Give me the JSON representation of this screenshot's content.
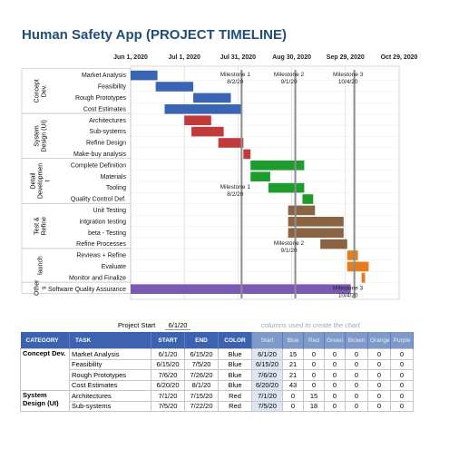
{
  "header": {
    "title": "Human Safety App (PROJECT TIMELINE)"
  },
  "chart_data": {
    "type": "gantt",
    "title": "Human Safety App (PROJECT TIMELINE)",
    "x_axis": {
      "type": "date",
      "range": [
        "2020-06-01",
        "2020-10-29"
      ],
      "ticks": [
        "Jun 1, 2020",
        "Jul 1, 2020",
        "Jul 31, 2020",
        "Aug 30, 2020",
        "Sep 29, 2020",
        "Oct 29, 2020"
      ],
      "tick_dates": [
        "2020-06-01",
        "2020-07-01",
        "2020-07-31",
        "2020-08-30",
        "2020-09-29",
        "2020-10-29"
      ]
    },
    "categories": [
      {
        "label": "Concept Dev.",
        "lines": [
          "Concept",
          "Dev."
        ],
        "rows": [
          0,
          3
        ]
      },
      {
        "label": "System Design (UI)",
        "lines": [
          "System",
          "Design (UI)"
        ],
        "rows": [
          4,
          7
        ]
      },
      {
        "label": "Detail Development",
        "lines": [
          "Detail",
          "Developmen",
          "t"
        ],
        "rows": [
          8,
          11
        ]
      },
      {
        "label": "Test & Refine",
        "lines": [
          "Test &",
          "Refine"
        ],
        "rows": [
          12,
          15
        ]
      },
      {
        "label": "launch",
        "lines": [
          "launch"
        ],
        "rows": [
          16,
          18
        ]
      },
      {
        "label": "Others",
        "lines": [
          "Other",
          "s"
        ],
        "rows": [
          19,
          19
        ]
      }
    ],
    "tasks": [
      {
        "name": "Market Analysis",
        "start": "2020-06-01",
        "days": 15,
        "color": "Blue"
      },
      {
        "name": "Feasibility",
        "start": "2020-06-15",
        "days": 21,
        "color": "Blue"
      },
      {
        "name": "Rough Prototypes",
        "start": "2020-07-06",
        "days": 21,
        "color": "Blue"
      },
      {
        "name": "Cost Estimates",
        "start": "2020-06-20",
        "days": 43,
        "color": "Blue"
      },
      {
        "name": "Architectures",
        "start": "2020-07-01",
        "days": 15,
        "color": "Red"
      },
      {
        "name": "Sub-systems",
        "start": "2020-07-05",
        "days": 18,
        "color": "Red"
      },
      {
        "name": "Refine Design",
        "start": "2020-07-20",
        "days": 14,
        "color": "Red"
      },
      {
        "name": "Make-buy analysis",
        "start": "2020-08-03",
        "days": 4,
        "color": "Red"
      },
      {
        "name": "Complete Definition",
        "start": "2020-08-07",
        "days": 30,
        "color": "Green"
      },
      {
        "name": "Materials",
        "start": "2020-08-07",
        "days": 11,
        "color": "Green"
      },
      {
        "name": "Tooling",
        "start": "2020-08-17",
        "days": 20,
        "color": "Green"
      },
      {
        "name": "Quality Control Def.",
        "start": "2020-09-05",
        "days": 6,
        "color": "Green"
      },
      {
        "name": "Unit Testing",
        "start": "2020-08-28",
        "days": 15,
        "color": "Brown"
      },
      {
        "name": "intgration testing",
        "start": "2020-08-28",
        "days": 31,
        "color": "Brown"
      },
      {
        "name": "beta - Testing",
        "start": "2020-08-28",
        "days": 31,
        "color": "Brown"
      },
      {
        "name": "Refine Processes",
        "start": "2020-09-15",
        "days": 15,
        "color": "Brown"
      },
      {
        "name": "Reviews + Refine",
        "start": "2020-09-30",
        "days": 6,
        "color": "Orange"
      },
      {
        "name": "Evaluate",
        "start": "2020-09-30",
        "days": 12,
        "color": "Orange"
      },
      {
        "name": "Monitor and Finalize",
        "start": "2020-10-08",
        "days": 2,
        "color": "Orange"
      },
      {
        "name": "Software Quality Assurance",
        "start": "2020-06-01",
        "days": 123,
        "color": "Purple"
      }
    ],
    "milestones": [
      {
        "label": "Milestone 1",
        "date_label": "8/2/20",
        "date": "2020-08-02",
        "row": 0
      },
      {
        "label": "Milestone 2",
        "date_label": "9/1/20",
        "date": "2020-09-01",
        "row": 0
      },
      {
        "label": "Milestone 3",
        "date_label": "10/4/20",
        "date": "2020-10-04",
        "row": 0
      },
      {
        "label": "Milestone 1",
        "date_label": "8/2/20",
        "date": "2020-08-02",
        "row": 10
      },
      {
        "label": "Milestone 2",
        "date_label": "9/1/20",
        "date": "2020-09-01",
        "row": 15
      },
      {
        "label": "Milestone 3",
        "date_label": "10/4/20",
        "date": "2020-10-04",
        "row": 19
      }
    ],
    "colors": {
      "Blue": "#3a65b4",
      "Red": "#c0393b",
      "Green": "#1f9d2c",
      "Brown": "#8a6343",
      "Orange": "#e57d1d",
      "Purple": "#7b5ab3"
    }
  },
  "project_start": {
    "label": "Project Start",
    "value": "6/1/20"
  },
  "note": "columns used to create the chart",
  "table": {
    "headers": [
      "CATEGORY",
      "TASK",
      "START",
      "END",
      "COLOR",
      "Start",
      "Blue",
      "Red",
      "Green",
      "Brown",
      "Orange",
      "Purple"
    ],
    "rows": [
      {
        "category": "Concept Dev.",
        "task": "Market Analysis",
        "start": "6/1/20",
        "end": "6/15/20",
        "color": "Blue",
        "start2": "6/1/20",
        "blue": "15",
        "red": "0",
        "green": "0",
        "brown": "0",
        "orange": "0",
        "purple": "0"
      },
      {
        "category": "",
        "task": "Feasibility",
        "start": "6/15/20",
        "end": "7/5/20",
        "color": "Blue",
        "start2": "6/15/20",
        "blue": "21",
        "red": "0",
        "green": "0",
        "brown": "0",
        "orange": "0",
        "purple": "0"
      },
      {
        "category": "",
        "task": "Rough Prototypes",
        "start": "7/6/20",
        "end": "7/26/20",
        "color": "Blue",
        "start2": "7/6/20",
        "blue": "21",
        "red": "0",
        "green": "0",
        "brown": "0",
        "orange": "0",
        "purple": "0"
      },
      {
        "category": "",
        "task": "Cost Estimates",
        "start": "6/20/20",
        "end": "8/1/20",
        "color": "Blue",
        "start2": "6/20/20",
        "blue": "43",
        "red": "0",
        "green": "0",
        "brown": "0",
        "orange": "0",
        "purple": "0"
      },
      {
        "category": "System Design (UI)",
        "task": "Architectures",
        "start": "7/1/20",
        "end": "7/15/20",
        "color": "Red",
        "start2": "7/1/20",
        "blue": "0",
        "red": "15",
        "green": "0",
        "brown": "0",
        "orange": "0",
        "purple": "0"
      },
      {
        "category": "",
        "task": "Sub-systems",
        "start": "7/5/20",
        "end": "7/22/20",
        "color": "Red",
        "start2": "7/5/20",
        "blue": "0",
        "red": "18",
        "green": "0",
        "brown": "0",
        "orange": "0",
        "purple": "0"
      }
    ]
  }
}
